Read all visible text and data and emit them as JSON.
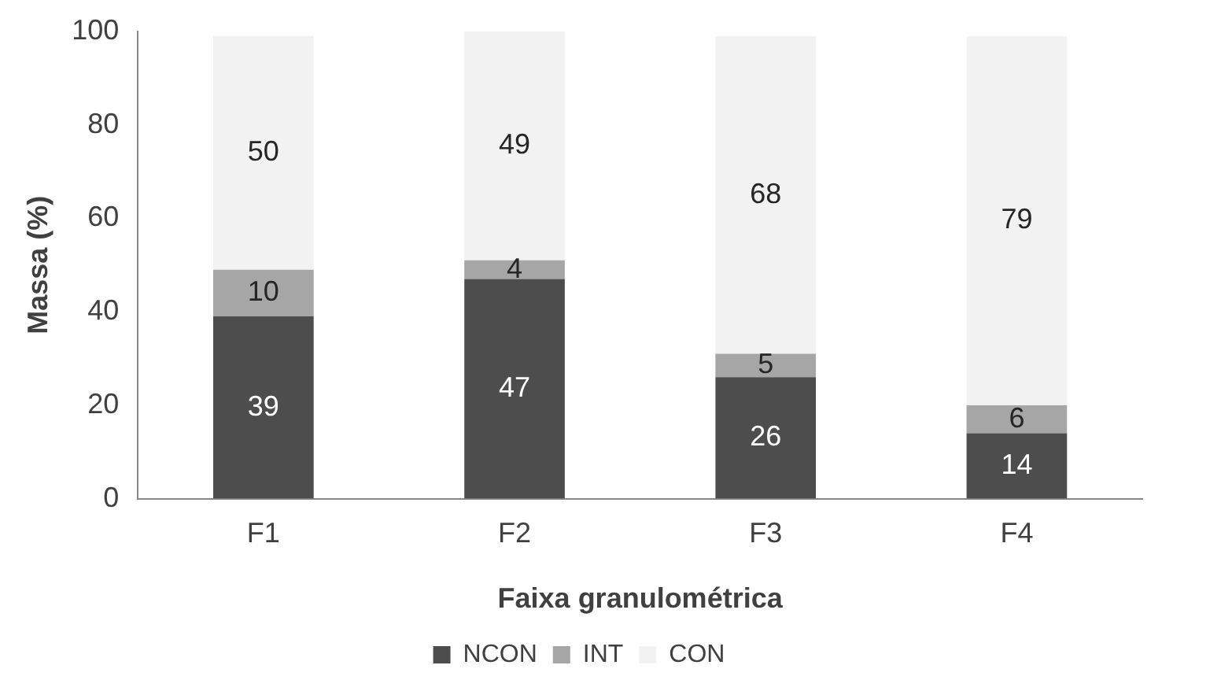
{
  "chart_data": {
    "type": "bar",
    "stacked": true,
    "xlabel": "Faixa granulométrica",
    "ylabel": "Massa (%)",
    "categories": [
      "F1",
      "F2",
      "F3",
      "F4"
    ],
    "series": [
      {
        "name": "NCON",
        "color": "#4d4d4d",
        "values": [
          39,
          47,
          26,
          14
        ]
      },
      {
        "name": "INT",
        "color": "#a6a6a6",
        "values": [
          10,
          4,
          5,
          6
        ]
      },
      {
        "name": "CON",
        "color": "#f2f2f2",
        "values": [
          50,
          49,
          68,
          79
        ]
      }
    ],
    "ylim": [
      0,
      100
    ],
    "yticks": [
      0,
      20,
      40,
      60,
      80,
      100
    ],
    "grid": false,
    "legend": "bottom",
    "data_labels": true
  }
}
